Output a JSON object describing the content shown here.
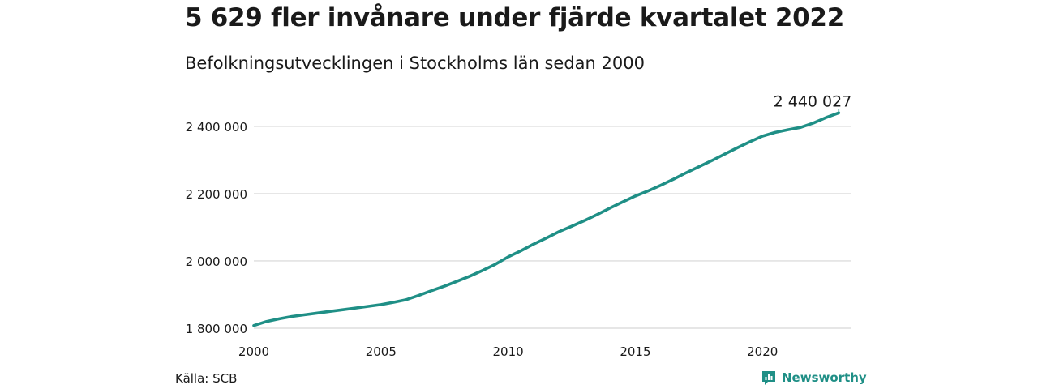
{
  "header": {
    "title": "5 629 fler invånare under fjärde kvartalet 2022",
    "subtitle": "Befolkningsutvecklingen i Stockholms län sedan 2000"
  },
  "footer": {
    "source": "Källa: SCB",
    "brand": "Newsworthy",
    "brand_icon": "bar-chart-icon"
  },
  "colors": {
    "line": "#1f8f86",
    "grid": "#dddddd",
    "text": "#1a1a1a"
  },
  "chart_data": {
    "type": "line",
    "title": "5 629 fler invånare under fjärde kvartalet 2022",
    "subtitle": "Befolkningsutvecklingen i Stockholms län sedan 2000",
    "xlabel": "",
    "ylabel": "",
    "xlim": [
      2000,
      2023.5
    ],
    "ylim": [
      1780000,
      2460000
    ],
    "x_ticks": [
      2000,
      2005,
      2010,
      2015,
      2020
    ],
    "y_ticks": [
      1800000,
      2000000,
      2200000,
      2400000
    ],
    "y_tick_labels": [
      "1 800 000",
      "2 000 000",
      "2 200 000",
      "2 400 000"
    ],
    "grid": "horizontal",
    "series": [
      {
        "x": [
          2000,
          2000.5,
          2001,
          2001.5,
          2002,
          2002.5,
          2003,
          2003.5,
          2004,
          2004.5,
          2005,
          2005.5,
          2006,
          2006.5,
          2007,
          2007.5,
          2008,
          2008.5,
          2009,
          2009.5,
          2010,
          2010.5,
          2011,
          2011.5,
          2012,
          2012.5,
          2013,
          2013.5,
          2014,
          2014.5,
          2015,
          2015.5,
          2016,
          2016.5,
          2017,
          2017.5,
          2018,
          2018.5,
          2019,
          2019.5,
          2020,
          2020.5,
          2021,
          2021.5,
          2022,
          2022.5,
          2023
        ],
        "values": [
          1808000,
          1820000,
          1828000,
          1835000,
          1840000,
          1845000,
          1850000,
          1855000,
          1860000,
          1865000,
          1870000,
          1877000,
          1885000,
          1898000,
          1912000,
          1925000,
          1940000,
          1955000,
          1972000,
          1990000,
          2012000,
          2030000,
          2050000,
          2068000,
          2087000,
          2103000,
          2120000,
          2138000,
          2157000,
          2175000,
          2193000,
          2208000,
          2225000,
          2243000,
          2262000,
          2280000,
          2298000,
          2317000,
          2336000,
          2354000,
          2371000,
          2382000,
          2390000,
          2397000,
          2410000,
          2426000,
          2440027
        ]
      }
    ],
    "annotations": [
      {
        "x": 2023,
        "y": 2440027,
        "label": "2 440 027"
      }
    ]
  }
}
